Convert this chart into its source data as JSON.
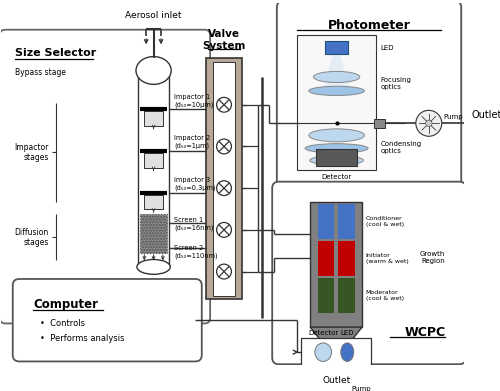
{
  "bg_color": "#ffffff",
  "fig_width": 5.0,
  "fig_height": 3.91,
  "dpi": 100,
  "aerosol_inlet_text": "Aerosol inlet",
  "outlet_text_photometer": "Outlet",
  "outlet_text_wcpc": "Outlet",
  "size_selector_label": "Size Selector",
  "bypass_label": "Bypass stage",
  "impactor_label": "Impactor\nstages",
  "diffusion_label": "Diffusion\nstages",
  "valve_system_label": "Valve\nSystem",
  "photometer_label": "Photometer",
  "photometer_labels": [
    "LED",
    "Focusing\noptics",
    "Condensing\noptics",
    "Detector"
  ],
  "wcpc_label": "WCPC",
  "wcpc_region_label": "Growth\nRegion",
  "wcpc_conditioner": "Conditioner\n(cool & wet)",
  "wcpc_initiator": "Initiator\n(warm & wet)",
  "wcpc_moderator": "Moderator\n(cool & wet)",
  "wcpc_detector_label": "Detector",
  "wcpc_led_label": "LED",
  "wcpc_pump_label": "Pump",
  "pump_label": "Pump",
  "computer_label": "Computer",
  "computer_items": [
    "Controls",
    "Performs analysis"
  ],
  "impactor_labels": [
    "Impactor 1\n(d₅₀=10μm)",
    "Impactor 2\n(d₅₀=1μm)",
    "Impactor 3\n(d₅₀=0.3μm)"
  ],
  "screen_labels": [
    "Screen 1\n(d₅₀=16nm)",
    "Screen 2\n(d₅₀=110nm)"
  ],
  "line_color": "#333333",
  "valve_fill": "#b8a898",
  "conditioner_color": "#4472c4",
  "initiator_color": "#c00000",
  "moderator_color": "#375623",
  "photometer_optics_color": "#9dc3e6",
  "wcpc_tube_color": "#808080"
}
